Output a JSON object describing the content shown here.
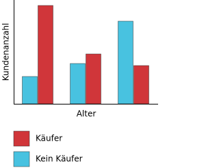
{
  "chart_data": {
    "type": "bar",
    "x_label": "Alter",
    "y_label": "Kundenanzahl",
    "categories": [
      null,
      null,
      null
    ],
    "series": [
      {
        "name": "Kein Käufer",
        "color": "#48c2e0",
        "values": [
          40,
          59,
          121
        ]
      },
      {
        "name": "Käufer",
        "color": "#d0363a",
        "values": [
          144,
          73,
          56
        ]
      }
    ],
    "ylim": [
      0,
      150
    ]
  }
}
